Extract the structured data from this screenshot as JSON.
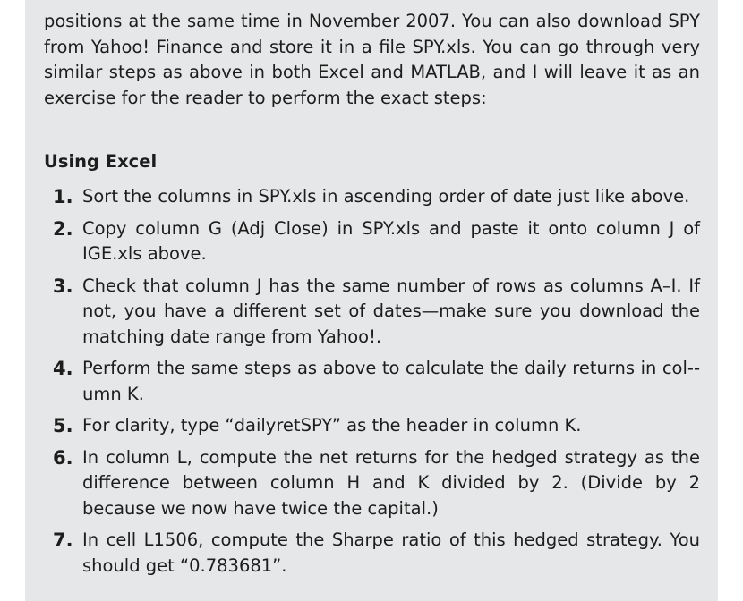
{
  "intro": "positions at the same time in November 2007. You can also download SPY from Yahoo! Finance and store it in a file SPY.xls. You can go through very similar steps as above in both Excel and MATLAB, and I will leave it as an exercise for the reader to perform the exact steps:",
  "heading": "Using Excel",
  "steps": [
    {
      "num": "1.",
      "text": "Sort the columns in SPY.xls in ascending order of date just like above."
    },
    {
      "num": "2.",
      "text": "Copy column G (Adj Close) in SPY.xls and paste it onto column J of IGE.xls above."
    },
    {
      "num": "3.",
      "text": "Check that column J has the same number of rows as columns A–I. If not, you have a different set of dates—make sure you download the matching date range from Yahoo!."
    },
    {
      "num": "4.",
      "text": "Perform the same steps as above to calculate the daily returns in col-­umn K."
    },
    {
      "num": "5.",
      "text": "For clarity, type “dailyretSPY” as the header in column K."
    },
    {
      "num": "6.",
      "text": "In column L, compute the net returns for the hedged strategy as the difference between column H and K divided by 2. (Divide by 2 because we now have twice the capital.)"
    },
    {
      "num": "7.",
      "text": "In cell L1506, compute the Sharpe ratio of this hedged strategy. You should get “0.783681”."
    }
  ]
}
